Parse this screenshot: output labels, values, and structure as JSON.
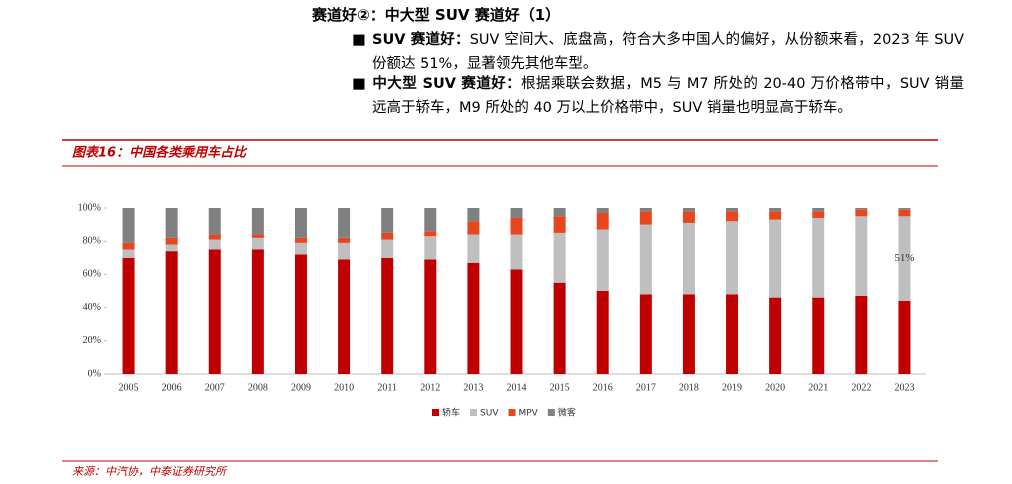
{
  "header": {
    "title": "赛道好②：中大型 SUV 赛道好（1）",
    "bullets": [
      {
        "label": "SUV 赛道好：",
        "text": "SUV 空间大、底盘高，符合大多中国人的偏好，从份额来看，2023 年 SUV 份额达 51%，显著领先其他车型。"
      },
      {
        "label": "中大型 SUV 赛道好：",
        "text": "根据乘联会数据，M5 与 M7 所处的 20-40 万价格带中，SUV 销量远高于轿车，M9 所处的 40 万以上价格带中，SUV 销量也明显高于轿车。"
      }
    ]
  },
  "figure_caption": "图表16：中国各类乘用车占比",
  "source": "来源：中汽协，中泰证券研究所",
  "chart_data": {
    "type": "stacked_bar",
    "categories": [
      "2005",
      "2006",
      "2007",
      "2008",
      "2009",
      "2010",
      "2011",
      "2012",
      "2013",
      "2014",
      "2015",
      "2016",
      "2017",
      "2018",
      "2019",
      "2020",
      "2021",
      "2022",
      "2023"
    ],
    "series": [
      {
        "name": "轿车",
        "color": "#c00000",
        "values": [
          70,
          74,
          75,
          75,
          72,
          69,
          70,
          69,
          67,
          63,
          55,
          50,
          48,
          48,
          48,
          46,
          46,
          47,
          44
        ]
      },
      {
        "name": "SUV",
        "color": "#bfbfbf",
        "values": [
          5,
          4,
          6,
          7,
          7,
          10,
          11,
          14,
          17,
          21,
          30,
          37,
          42,
          43,
          44,
          47,
          48,
          48,
          51
        ],
        "value_labels": [
          null,
          null,
          null,
          null,
          null,
          null,
          null,
          null,
          null,
          null,
          null,
          null,
          null,
          null,
          null,
          null,
          null,
          null,
          "51%"
        ]
      },
      {
        "name": "MPV",
        "color": "#e8461c",
        "values": [
          4,
          4,
          3,
          2,
          3,
          3,
          4,
          3,
          8,
          10,
          10,
          10,
          8,
          7,
          6,
          5,
          4,
          4,
          4
        ]
      },
      {
        "name": "微客",
        "color": "#808080",
        "values": [
          21,
          18,
          16,
          16,
          18,
          18,
          15,
          14,
          8,
          6,
          5,
          3,
          2,
          2,
          2,
          2,
          2,
          1,
          1
        ]
      }
    ],
    "ylim": [
      0,
      100
    ],
    "yticks": [
      {
        "value": 0,
        "label": "0%"
      },
      {
        "value": 20,
        "label": "20%"
      },
      {
        "value": 40,
        "label": "40%"
      },
      {
        "value": 60,
        "label": "60%"
      },
      {
        "value": 80,
        "label": "80%"
      },
      {
        "value": 100,
        "label": "100%"
      }
    ],
    "legend": "bottom"
  }
}
